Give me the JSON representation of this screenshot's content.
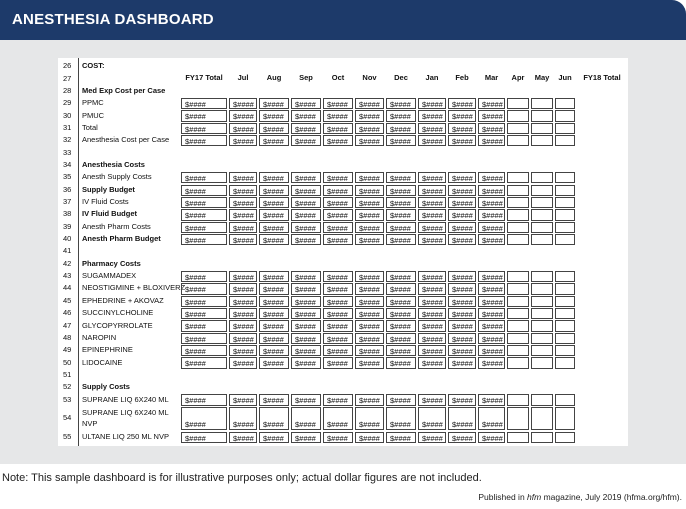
{
  "header": {
    "title": "ANESTHESIA DASHBOARD"
  },
  "table": {
    "columns": [
      "FY17 Total",
      "Jul",
      "Aug",
      "Sep",
      "Oct",
      "Nov",
      "Dec",
      "Jan",
      "Feb",
      "Mar",
      "Apr",
      "May",
      "Jun",
      "FY18 Total"
    ],
    "rows": [
      {
        "num": 26,
        "label": "COST:",
        "bold": true
      },
      {
        "num": 27
      },
      {
        "num": 28,
        "label": "Med Exp Cost per Case",
        "bold": true
      },
      {
        "num": 29,
        "label": "PPMC",
        "cells": [
          "$####",
          "$####",
          "$####",
          "$####",
          "$####",
          "$####",
          "$####",
          "$####",
          "$####",
          "$####"
        ]
      },
      {
        "num": 30,
        "label": "PMUC",
        "cells": [
          "$####",
          "$####",
          "$####",
          "$####",
          "$####",
          "$####",
          "$####",
          "$####",
          "$####",
          "$####"
        ]
      },
      {
        "num": 31,
        "label": "Total",
        "cells": [
          "$####",
          "$####",
          "$####",
          "$####",
          "$####",
          "$####",
          "$####",
          "$####",
          "$####",
          "$####"
        ]
      },
      {
        "num": 32,
        "label": "Anesthesia Cost per Case",
        "cells": [
          "$####",
          "$####",
          "$####",
          "$####",
          "$####",
          "$####",
          "$####",
          "$####",
          "$####",
          "$####"
        ]
      },
      {
        "num": 33
      },
      {
        "num": 34,
        "label": "Anesthesia Costs",
        "bold": true
      },
      {
        "num": 35,
        "label": "Anesth Supply Costs",
        "cells": [
          "$####",
          "$####",
          "$####",
          "$####",
          "$####",
          "$####",
          "$####",
          "$####",
          "$####",
          "$####"
        ]
      },
      {
        "num": 36,
        "label": "Supply Budget",
        "bold": true,
        "cells": [
          "$####",
          "$####",
          "$####",
          "$####",
          "$####",
          "$####",
          "$####",
          "$####",
          "$####",
          "$####"
        ]
      },
      {
        "num": 37,
        "label": "IV Fluid Costs",
        "cells": [
          "$####",
          "$####",
          "$####",
          "$####",
          "$####",
          "$####",
          "$####",
          "$####",
          "$####",
          "$####"
        ]
      },
      {
        "num": 38,
        "label": "IV Fluid Budget",
        "bold": true,
        "cells": [
          "$####",
          "$####",
          "$####",
          "$####",
          "$####",
          "$####",
          "$####",
          "$####",
          "$####",
          "$####"
        ]
      },
      {
        "num": 39,
        "label": "Anesth Pharm Costs",
        "cells": [
          "$####",
          "$####",
          "$####",
          "$####",
          "$####",
          "$####",
          "$####",
          "$####",
          "$####",
          "$####"
        ]
      },
      {
        "num": 40,
        "label": "Anesth Pharm Budget",
        "bold": true,
        "cells": [
          "$####",
          "$####",
          "$####",
          "$####",
          "$####",
          "$####",
          "$####",
          "$####",
          "$####",
          "$####"
        ]
      },
      {
        "num": 41
      },
      {
        "num": 42,
        "label": "Pharmacy Costs",
        "bold": true
      },
      {
        "num": 43,
        "label": "SUGAMMADEX",
        "cells": [
          "$####",
          "$####",
          "$####",
          "$####",
          "$####",
          "$####",
          "$####",
          "$####",
          "$####",
          "$####"
        ]
      },
      {
        "num": 44,
        "label": "NEOSTIGMINE + BLOXIVERZ",
        "cells": [
          "$####",
          "$####",
          "$####",
          "$####",
          "$####",
          "$####",
          "$####",
          "$####",
          "$####",
          "$####"
        ]
      },
      {
        "num": 45,
        "label": "EPHEDRINE + AKOVAZ",
        "cells": [
          "$####",
          "$####",
          "$####",
          "$####",
          "$####",
          "$####",
          "$####",
          "$####",
          "$####",
          "$####"
        ]
      },
      {
        "num": 46,
        "label": "SUCCINYLCHOLINE",
        "cells": [
          "$####",
          "$####",
          "$####",
          "$####",
          "$####",
          "$####",
          "$####",
          "$####",
          "$####",
          "$####"
        ]
      },
      {
        "num": 47,
        "label": "GLYCOPYRROLATE",
        "cells": [
          "$####",
          "$####",
          "$####",
          "$####",
          "$####",
          "$####",
          "$####",
          "$####",
          "$####",
          "$####"
        ]
      },
      {
        "num": 48,
        "label": "NAROPIN",
        "cells": [
          "$####",
          "$####",
          "$####",
          "$####",
          "$####",
          "$####",
          "$####",
          "$####",
          "$####",
          "$####"
        ]
      },
      {
        "num": 49,
        "label": "EPINEPHRINE",
        "cells": [
          "$####",
          "$####",
          "$####",
          "$####",
          "$####",
          "$####",
          "$####",
          "$####",
          "$####",
          "$####"
        ]
      },
      {
        "num": 50,
        "label": "LIDOCAINE",
        "cells": [
          "$####",
          "$####",
          "$####",
          "$####",
          "$####",
          "$####",
          "$####",
          "$####",
          "$####",
          "$####"
        ]
      },
      {
        "num": 51
      },
      {
        "num": 52,
        "label": "Supply Costs",
        "bold": true
      },
      {
        "num": 53,
        "label": "SUPRANE LIQ 6X240 ML",
        "cells": [
          "$####",
          "$####",
          "$####",
          "$####",
          "$####",
          "$####",
          "$####",
          "$####",
          "$####",
          "$####"
        ]
      },
      {
        "num": 54,
        "label": "SUPRANE LIQ 6X240 ML NVP",
        "cells": [
          "$####",
          "$####",
          "$####",
          "$####",
          "$####",
          "$####",
          "$####",
          "$####",
          "$####",
          "$####"
        ]
      },
      {
        "num": 55,
        "label": "ULTANE LIQ 250 ML NVP",
        "cells": [
          "$####",
          "$####",
          "$####",
          "$####",
          "$####",
          "$####",
          "$####",
          "$####",
          "$####",
          "$####"
        ]
      }
    ]
  },
  "footer": {
    "note": "Note: This sample dashboard is for illustrative purposes only; actual dollar figures are not included.",
    "credit": [
      "Published in ",
      "hfm",
      " magazine, July 2019 (hfma.org/hfm)."
    ]
  }
}
